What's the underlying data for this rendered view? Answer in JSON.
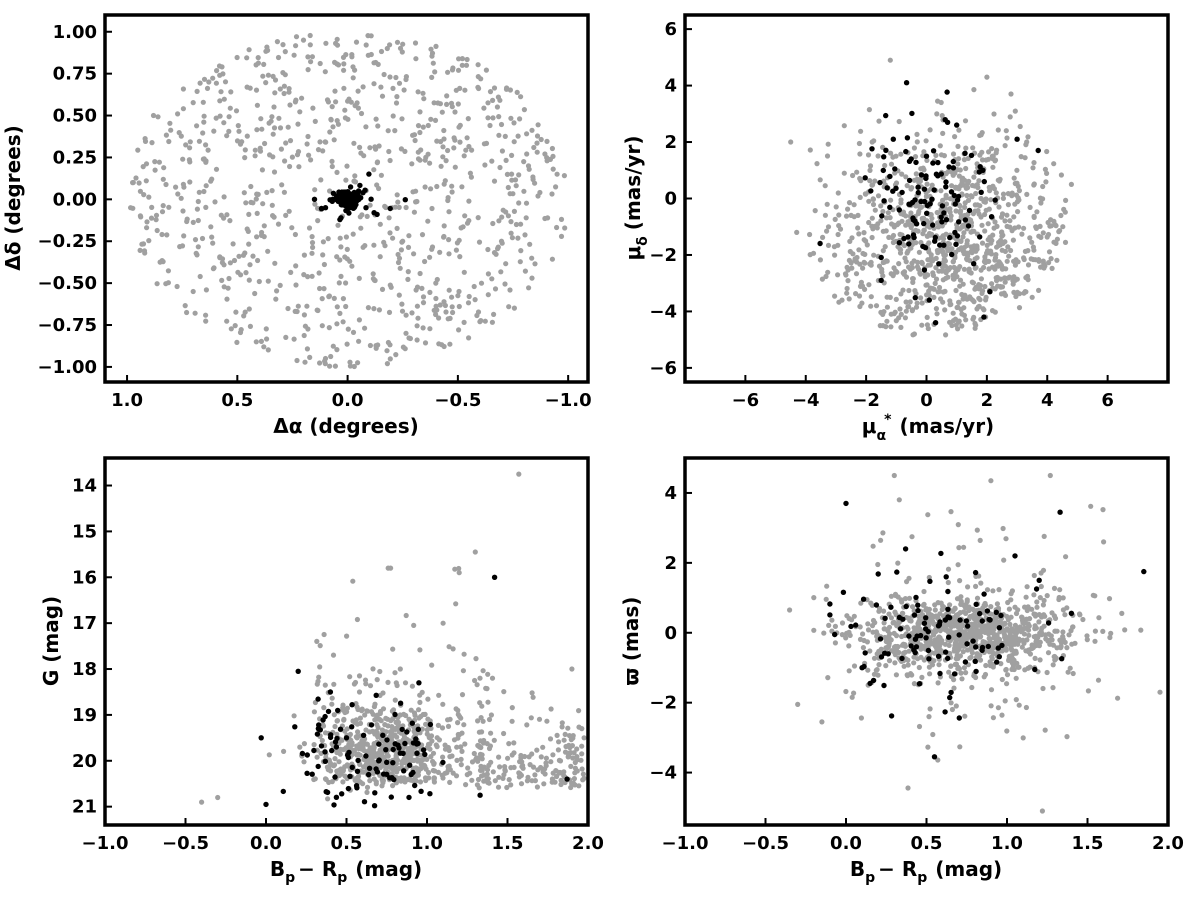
{
  "colors": {
    "field_points": "#a0a0a0",
    "member_points": "#000000"
  },
  "chart_data": [
    {
      "type": "scatter",
      "xlabel": "Δα (degrees)",
      "ylabel": "Δδ (degrees)",
      "xlim": [
        1.1,
        -1.09
      ],
      "ylim": [
        -1.09,
        1.1
      ],
      "x_inverted": true,
      "xticks": [
        1.0,
        0.5,
        0.0,
        -0.5,
        -1.0
      ],
      "xtick_labels": [
        "1.0",
        "0.5",
        "0.0",
        "−0.5",
        "−1.0"
      ],
      "yticks": [
        -1.0,
        -0.75,
        -0.5,
        -0.25,
        0.0,
        0.25,
        0.5,
        0.75,
        1.0
      ],
      "ytick_labels": [
        "−1.00",
        "−0.75",
        "−0.50",
        "−0.25",
        "0.00",
        "0.25",
        "0.50",
        "0.75",
        "1.00"
      ],
      "grid": false,
      "series": [
        {
          "color": "#a0a0a0",
          "distribution": "uniform_disk",
          "center": [
            0.0,
            0.0
          ],
          "radius": 1.0,
          "count": 900,
          "points": [
            [
              0.88,
              0.5
            ],
            [
              -0.95,
              0.15
            ],
            [
              0.2,
              0.95
            ],
            [
              -0.6,
              -0.73
            ],
            [
              0.92,
              -0.32
            ],
            [
              0.38,
              -0.88
            ],
            [
              -0.78,
              0.48
            ],
            [
              -0.18,
              0.9
            ],
            [
              0.58,
              0.74
            ],
            [
              -0.4,
              -0.5
            ],
            [
              0.1,
              -0.95
            ],
            [
              -0.97,
              -0.12
            ],
            [
              0.7,
              -0.55
            ],
            [
              -0.52,
              0.8
            ],
            [
              0.3,
              0.3
            ],
            [
              -0.25,
              -0.25
            ]
          ]
        },
        {
          "color": "#000000",
          "distribution": "clustered",
          "center": [
            0.0,
            0.0
          ],
          "count": 120,
          "points": [
            [
              0.0,
              0.0
            ],
            [
              0.05,
              0.02
            ],
            [
              -0.03,
              -0.03
            ],
            [
              0.15,
              0.0
            ],
            [
              -0.12,
              -0.08
            ],
            [
              0.1,
              -0.05
            ],
            [
              -0.05,
              0.05
            ],
            [
              0.03,
              -0.11
            ]
          ]
        }
      ]
    },
    {
      "type": "scatter",
      "xlabel": "μα* (mas/yr)",
      "xlabel_main": "μ",
      "xlabel_sub": "α",
      "xlabel_sup": "*",
      "xlabel_rest": "(mas/yr)",
      "ylabel": "μδ (mas/yr)",
      "ylabel_main": "μ",
      "ylabel_sub": "δ",
      "ylabel_rest": "(mas/yr)",
      "xlim": [
        -8,
        8
      ],
      "ylim": [
        -6.5,
        6.5
      ],
      "xticks": [
        -6,
        -4,
        -2,
        0,
        2,
        4,
        6
      ],
      "xtick_labels": [
        "−6",
        "−4",
        "−2",
        "0",
        "2",
        "4",
        "6"
      ],
      "yticks": [
        -6,
        -4,
        -2,
        0,
        2,
        4,
        6
      ],
      "ytick_labels": [
        "−6",
        "−4",
        "−2",
        "0",
        "2",
        "4",
        "6"
      ],
      "grid": false,
      "series": [
        {
          "color": "#a0a0a0",
          "distribution": "ellipse_blob",
          "center": [
            0.8,
            -1.5
          ],
          "spread": [
            2.1,
            1.9
          ],
          "count": 1000,
          "points": [
            [
              -4.5,
              2.0
            ],
            [
              -1.2,
              4.9
            ],
            [
              2.8,
              3.7
            ],
            [
              4.8,
              0.5
            ],
            [
              -2.8,
              -3.6
            ],
            [
              -0.4,
              -4.8
            ],
            [
              3.5,
              -3.5
            ],
            [
              2.0,
              4.3
            ],
            [
              -4.3,
              -1.2
            ],
            [
              -1.8,
              2.0
            ]
          ]
        },
        {
          "color": "#000000",
          "distribution": "clustered",
          "center": [
            0.0,
            0.0
          ],
          "spread": [
            1.1,
            1.6
          ],
          "count": 120,
          "points": [
            [
              0.0,
              1.5
            ],
            [
              0.7,
              2.7
            ],
            [
              1.0,
              2.6
            ],
            [
              3.0,
              2.1
            ],
            [
              3.7,
              1.7
            ],
            [
              -1.1,
              2.1
            ],
            [
              0.3,
              -4.4
            ],
            [
              -1.5,
              -2.9
            ],
            [
              2.1,
              -3.3
            ],
            [
              1.9,
              -4.2
            ]
          ]
        }
      ]
    },
    {
      "type": "scatter",
      "xlabel": "Bp − Rp (mag)",
      "xlabel_main_b": "B",
      "xlabel_sub_b": "p",
      "xlabel_mid": "− R",
      "xlabel_sub_r": "p",
      "xlabel_rest": "(mag)",
      "ylabel": "G (mag)",
      "xlim": [
        -1.0,
        2.0
      ],
      "ylim": [
        21.4,
        13.4
      ],
      "y_inverted": true,
      "xticks": [
        -1.0,
        -0.5,
        0.0,
        0.5,
        1.0,
        1.5,
        2.0
      ],
      "xtick_labels": [
        "−1.0",
        "−0.5",
        "0.0",
        "0.5",
        "1.0",
        "1.5",
        "2.0"
      ],
      "yticks": [
        14,
        15,
        16,
        17,
        18,
        19,
        20,
        21
      ],
      "ytick_labels": [
        "14",
        "15",
        "16",
        "17",
        "18",
        "19",
        "20",
        "21"
      ],
      "grid": false,
      "series": [
        {
          "color": "#a0a0a0",
          "distribution": "cmd_field",
          "count": 900,
          "points": [
            [
              -0.4,
              20.9
            ],
            [
              -0.3,
              20.8
            ],
            [
              0.6,
              20.5
            ],
            [
              0.8,
              20.2
            ],
            [
              1.3,
              15.45
            ],
            [
              1.57,
              13.75
            ],
            [
              1.9,
              18.0
            ],
            [
              1.1,
              17.0
            ],
            [
              1.2,
              15.9
            ]
          ]
        },
        {
          "color": "#000000",
          "distribution": "cmd_members",
          "count": 110,
          "points": [
            [
              -0.03,
              19.5
            ],
            [
              0.0,
              20.95
            ],
            [
              0.2,
              18.05
            ],
            [
              0.4,
              18.5
            ],
            [
              0.5,
              19.5
            ],
            [
              0.7,
              20.0
            ],
            [
              0.95,
              18.3
            ],
            [
              1.42,
              16.0
            ],
            [
              1.33,
              20.75
            ],
            [
              1.87,
              20.4
            ]
          ]
        }
      ]
    },
    {
      "type": "scatter",
      "xlabel": "Bp − Rp (mag)",
      "xlabel_main_b": "B",
      "xlabel_sub_b": "p",
      "xlabel_mid": "− R",
      "xlabel_sub_r": "p",
      "xlabel_rest": "(mag)",
      "ylabel": "ϖ (mas)",
      "xlim": [
        -1.0,
        2.0
      ],
      "ylim": [
        -5.5,
        5.0
      ],
      "xticks": [
        -1.0,
        -0.5,
        0.0,
        0.5,
        1.0,
        1.5,
        2.0
      ],
      "xtick_labels": [
        "−1.0",
        "−0.5",
        "0.0",
        "0.5",
        "1.0",
        "1.5",
        "2.0"
      ],
      "yticks": [
        -4,
        -2,
        0,
        2,
        4
      ],
      "ytick_labels": [
        "−4",
        "−2",
        "0",
        "2",
        "4"
      ],
      "grid": false,
      "series": [
        {
          "color": "#a0a0a0",
          "distribution": "parallax_field",
          "count": 1000,
          "points": [
            [
              -0.35,
              0.65
            ],
            [
              -0.3,
              -2.05
            ],
            [
              -0.15,
              -2.55
            ],
            [
              0.3,
              4.5
            ],
            [
              0.9,
              4.35
            ],
            [
              1.22,
              -5.1
            ],
            [
              1.6,
              2.6
            ],
            [
              2.0,
              2.1
            ],
            [
              1.95,
              -1.7
            ]
          ]
        },
        {
          "color": "#000000",
          "distribution": "parallax_members",
          "count": 110,
          "points": [
            [
              0.0,
              3.7
            ],
            [
              1.33,
              3.45
            ],
            [
              1.05,
              2.2
            ],
            [
              0.55,
              -3.55
            ],
            [
              0.37,
              2.4
            ],
            [
              1.85,
              1.75
            ],
            [
              -0.07,
              -0.05
            ],
            [
              0.1,
              -1.0
            ],
            [
              0.15,
              -1.45
            ],
            [
              1.2,
              1.5
            ]
          ]
        }
      ]
    }
  ]
}
